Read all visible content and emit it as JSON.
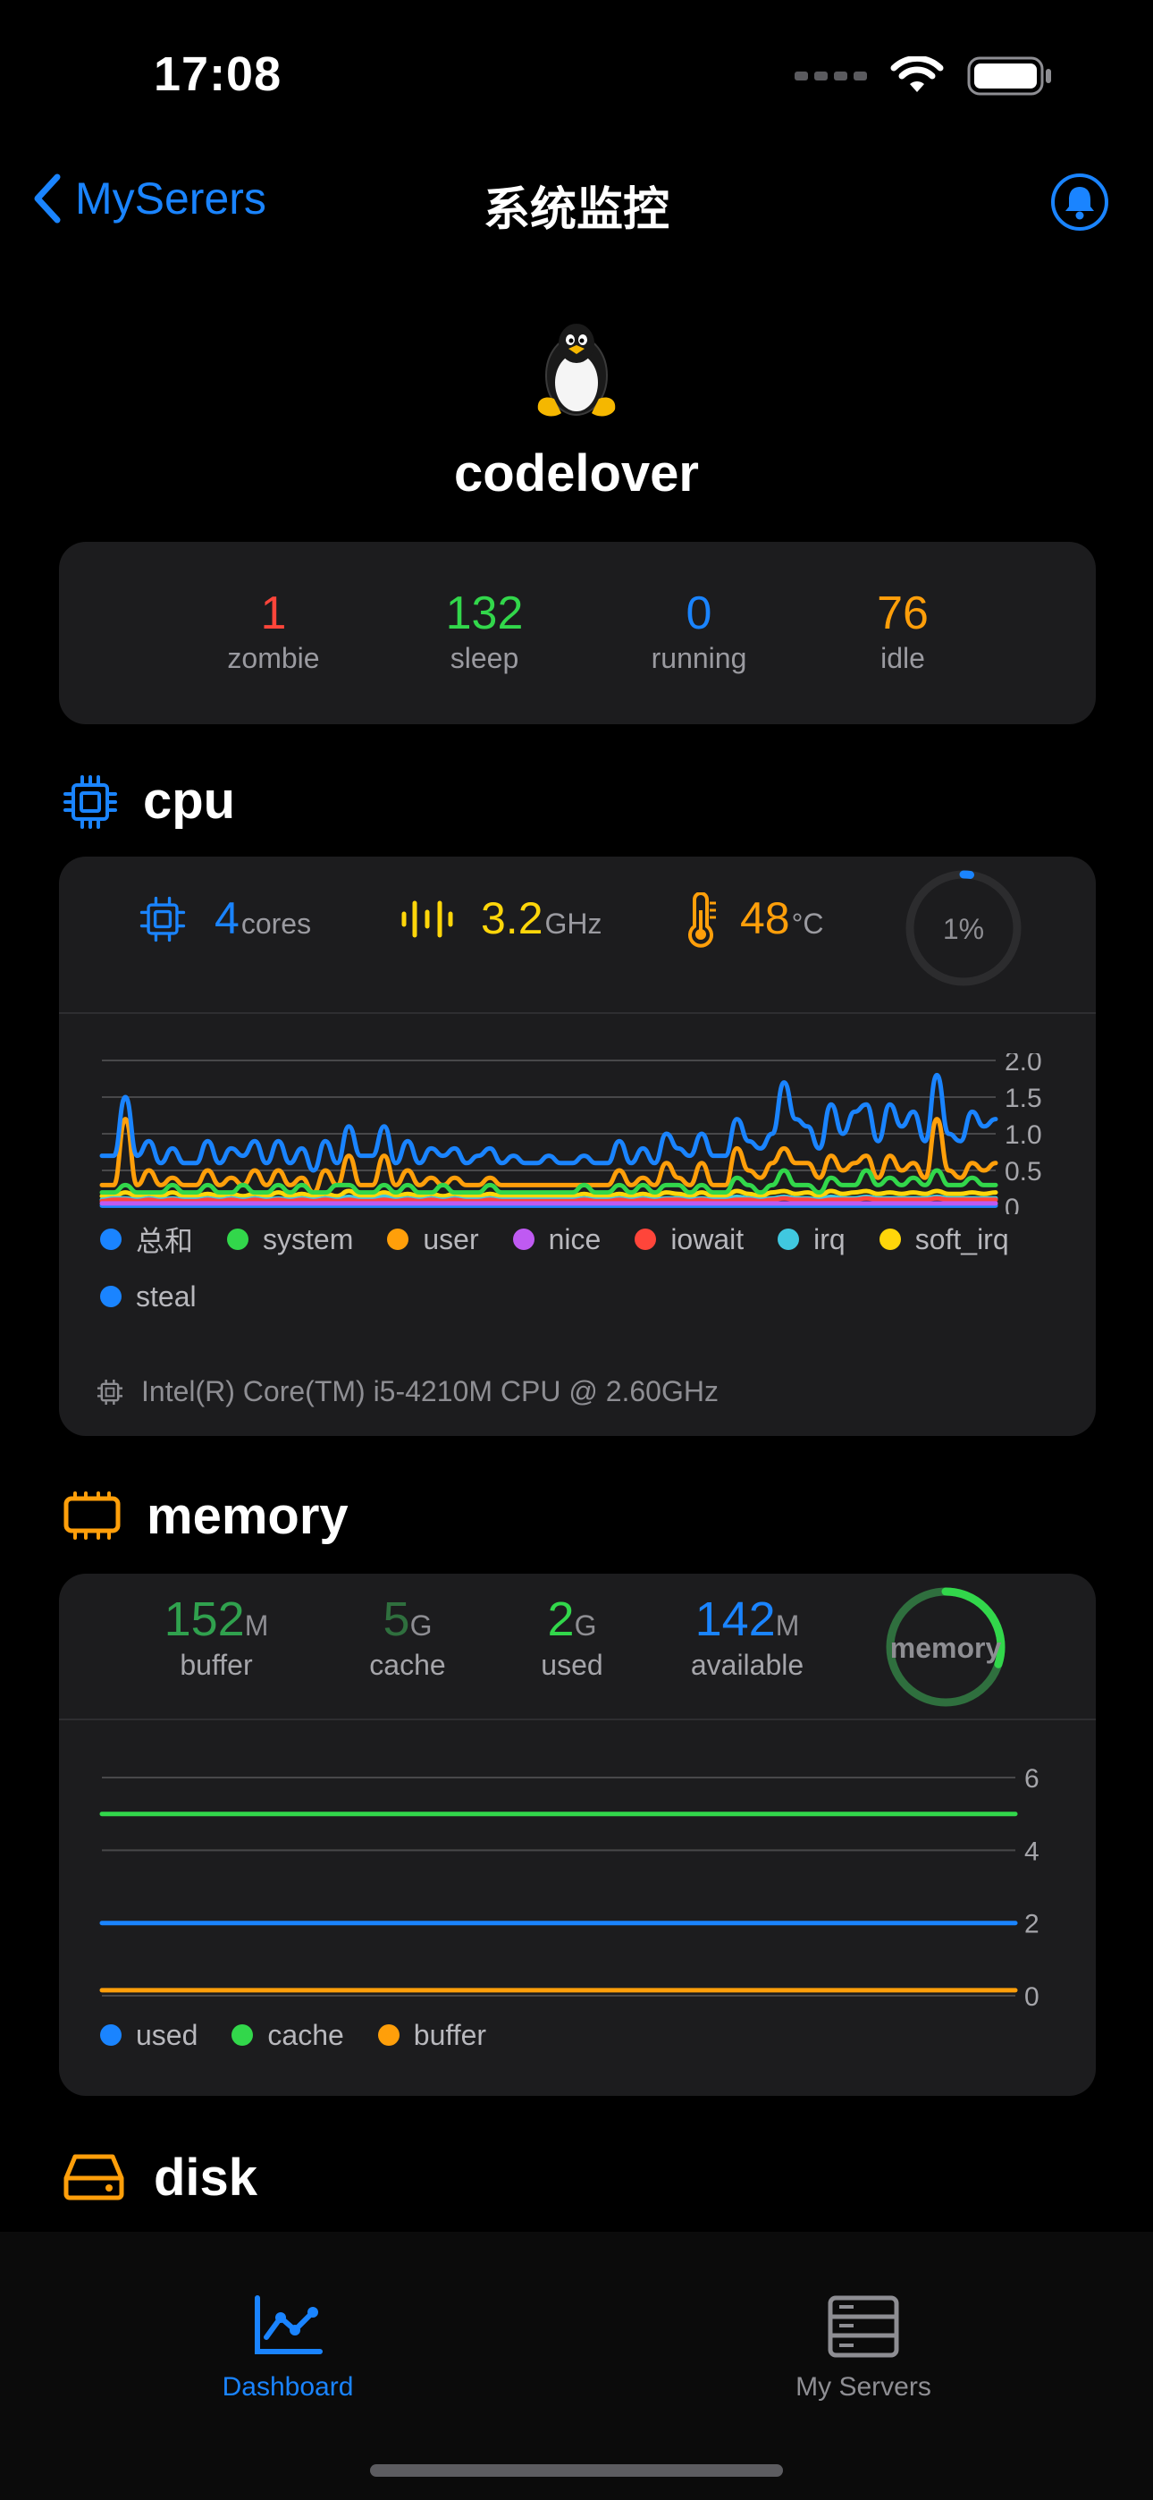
{
  "status_bar": {
    "time": "17:08"
  },
  "nav": {
    "back_label": "MySerers",
    "title": "系统监控"
  },
  "host": {
    "name": "codelover"
  },
  "processes": [
    {
      "value": "1",
      "label": "zombie",
      "color": "#ff453a"
    },
    {
      "value": "132",
      "label": "sleep",
      "color": "#32d74b"
    },
    {
      "value": "0",
      "label": "running",
      "color": "#1a84ff"
    },
    {
      "value": "76",
      "label": "idle",
      "color": "#ff9f0a"
    }
  ],
  "cpu": {
    "section_title": "cpu",
    "cores_value": "4",
    "cores_unit": "cores",
    "freq_value": "3.2",
    "freq_unit": "GHz",
    "temp_value": "48",
    "temp_unit": "°C",
    "usage_label": "1%",
    "usage_fraction": 0.01,
    "model": "Intel(R) Core(TM) i5-4210M CPU @ 2.60GHz",
    "legend": [
      {
        "name": "总和",
        "color": "#1a84ff"
      },
      {
        "name": "system",
        "color": "#32d74b"
      },
      {
        "name": "user",
        "color": "#ff9f0a"
      },
      {
        "name": "nice",
        "color": "#bf5af2"
      },
      {
        "name": "iowait",
        "color": "#ff453a"
      },
      {
        "name": "irq",
        "color": "#40c8e0"
      },
      {
        "name": "soft_irq",
        "color": "#ffd60a"
      },
      {
        "name": "steal",
        "color": "#1a84ff"
      }
    ]
  },
  "memory": {
    "section_title": "memory",
    "ring_label": "memory",
    "ring_fraction": 0.3,
    "stats": [
      {
        "value": "152",
        "unit": "M",
        "label": "buffer",
        "color": "#30a14e"
      },
      {
        "value": "5",
        "unit": "G",
        "label": "cache",
        "color": "#2f6f3e"
      },
      {
        "value": "2",
        "unit": "G",
        "label": "used",
        "color": "#32d74b"
      },
      {
        "value": "142",
        "unit": "M",
        "label": "available",
        "color": "#1a84ff"
      }
    ],
    "legend": [
      {
        "name": "used",
        "color": "#1a84ff"
      },
      {
        "name": "cache",
        "color": "#32d74b"
      },
      {
        "name": "buffer",
        "color": "#ff9f0a"
      }
    ]
  },
  "disk": {
    "section_title": "disk"
  },
  "tabs": [
    {
      "label": "Dashboard",
      "active": true
    },
    {
      "label": "My Servers",
      "active": false
    }
  ],
  "chart_data": [
    {
      "type": "line",
      "title": "",
      "xlabel": "",
      "ylabel": "",
      "y_ticks": [
        "2.0",
        "1.5",
        "1.0",
        "0.5",
        "0"
      ],
      "ylim": [
        0,
        2.0
      ],
      "grid": true,
      "legend_position": "bottom",
      "series": [
        {
          "name": "总和",
          "color": "#1a84ff",
          "values": [
            0.7,
            0.7,
            1.5,
            0.7,
            0.9,
            0.6,
            0.8,
            0.6,
            0.6,
            0.9,
            0.6,
            0.8,
            0.7,
            0.9,
            0.6,
            0.9,
            0.6,
            0.8,
            0.5,
            0.9,
            0.6,
            1.1,
            0.7,
            0.7,
            1.1,
            0.6,
            0.9,
            0.6,
            0.8,
            0.7,
            0.8,
            0.6,
            0.7,
            0.8,
            0.6,
            0.7,
            0.6,
            0.6,
            0.7,
            0.6,
            0.6,
            0.7,
            0.6,
            0.6,
            0.9,
            0.6,
            0.8,
            0.6,
            1.0,
            0.8,
            0.7,
            1.0,
            0.7,
            0.7,
            1.2,
            0.9,
            0.8,
            1.0,
            1.7,
            1.2,
            1.1,
            0.8,
            1.4,
            1.0,
            1.3,
            1.4,
            0.9,
            1.4,
            1.1,
            1.3,
            0.9,
            1.8,
            1.0,
            0.9,
            1.3,
            1.1,
            1.2
          ]
        },
        {
          "name": "system",
          "color": "#32d74b",
          "values": [
            0.2,
            0.2,
            0.3,
            0.2,
            0.2,
            0.2,
            0.3,
            0.2,
            0.2,
            0.3,
            0.2,
            0.2,
            0.3,
            0.2,
            0.2,
            0.3,
            0.2,
            0.3,
            0.2,
            0.2,
            0.3,
            0.3,
            0.2,
            0.2,
            0.3,
            0.2,
            0.3,
            0.2,
            0.2,
            0.3,
            0.2,
            0.2,
            0.2,
            0.3,
            0.2,
            0.2,
            0.2,
            0.2,
            0.2,
            0.2,
            0.2,
            0.3,
            0.2,
            0.2,
            0.3,
            0.2,
            0.3,
            0.2,
            0.3,
            0.3,
            0.2,
            0.3,
            0.2,
            0.2,
            0.4,
            0.3,
            0.2,
            0.3,
            0.5,
            0.3,
            0.3,
            0.2,
            0.4,
            0.3,
            0.3,
            0.5,
            0.3,
            0.4,
            0.3,
            0.4,
            0.3,
            0.5,
            0.3,
            0.3,
            0.4,
            0.3,
            0.3
          ]
        },
        {
          "name": "user",
          "color": "#ff9f0a",
          "values": [
            0.3,
            0.3,
            1.2,
            0.3,
            0.5,
            0.3,
            0.4,
            0.3,
            0.3,
            0.5,
            0.3,
            0.4,
            0.3,
            0.5,
            0.3,
            0.5,
            0.3,
            0.4,
            0.2,
            0.5,
            0.3,
            0.7,
            0.3,
            0.3,
            0.7,
            0.3,
            0.5,
            0.3,
            0.4,
            0.3,
            0.4,
            0.3,
            0.3,
            0.4,
            0.3,
            0.3,
            0.3,
            0.3,
            0.3,
            0.3,
            0.3,
            0.3,
            0.3,
            0.3,
            0.5,
            0.3,
            0.4,
            0.3,
            0.6,
            0.4,
            0.3,
            0.6,
            0.3,
            0.3,
            0.8,
            0.5,
            0.4,
            0.6,
            0.8,
            0.6,
            0.6,
            0.4,
            0.7,
            0.5,
            0.6,
            0.7,
            0.4,
            0.7,
            0.5,
            0.6,
            0.4,
            1.2,
            0.5,
            0.4,
            0.6,
            0.5,
            0.6
          ]
        },
        {
          "name": "nice",
          "color": "#bf5af2",
          "values": [
            0.05,
            0.05,
            0.05,
            0.05,
            0.05,
            0.05,
            0.05,
            0.05,
            0.05,
            0.05,
            0.05,
            0.05,
            0.05,
            0.05,
            0.05,
            0.05,
            0.05,
            0.05,
            0.05,
            0.05,
            0.05,
            0.05,
            0.05,
            0.05,
            0.05,
            0.05,
            0.05,
            0.05,
            0.05,
            0.05,
            0.05,
            0.05,
            0.05,
            0.05,
            0.05,
            0.05,
            0.05,
            0.05,
            0.05,
            0.05,
            0.05,
            0.05,
            0.05,
            0.05,
            0.05,
            0.05,
            0.05,
            0.05,
            0.05,
            0.05,
            0.05,
            0.05,
            0.05,
            0.05,
            0.05,
            0.05,
            0.05,
            0.05,
            0.05,
            0.05,
            0.05,
            0.05,
            0.05,
            0.05,
            0.05,
            0.05,
            0.05,
            0.05,
            0.05,
            0.05,
            0.05,
            0.05,
            0.05,
            0.05,
            0.05,
            0.05,
            0.05
          ]
        },
        {
          "name": "iowait",
          "color": "#ff453a",
          "values": [
            0.08,
            0.1,
            0.1,
            0.08,
            0.1,
            0.08,
            0.1,
            0.08,
            0.08,
            0.1,
            0.08,
            0.1,
            0.08,
            0.1,
            0.08,
            0.1,
            0.08,
            0.1,
            0.08,
            0.1,
            0.08,
            0.1,
            0.08,
            0.08,
            0.1,
            0.08,
            0.1,
            0.08,
            0.1,
            0.08,
            0.1,
            0.08,
            0.08,
            0.1,
            0.08,
            0.08,
            0.08,
            0.08,
            0.08,
            0.08,
            0.08,
            0.1,
            0.08,
            0.08,
            0.1,
            0.08,
            0.1,
            0.08,
            0.1,
            0.1,
            0.08,
            0.1,
            0.08,
            0.08,
            0.1,
            0.1,
            0.08,
            0.1,
            0.12,
            0.1,
            0.1,
            0.08,
            0.1,
            0.1,
            0.1,
            0.12,
            0.1,
            0.1,
            0.1,
            0.1,
            0.1,
            0.12,
            0.1,
            0.1,
            0.1,
            0.1,
            0.1
          ]
        },
        {
          "name": "irq",
          "color": "#40c8e0",
          "values": [
            0.1,
            0.12,
            0.12,
            0.1,
            0.12,
            0.1,
            0.12,
            0.1,
            0.1,
            0.12,
            0.1,
            0.12,
            0.1,
            0.12,
            0.1,
            0.12,
            0.1,
            0.12,
            0.1,
            0.12,
            0.1,
            0.14,
            0.1,
            0.1,
            0.14,
            0.1,
            0.12,
            0.1,
            0.12,
            0.1,
            0.12,
            0.1,
            0.1,
            0.12,
            0.1,
            0.1,
            0.1,
            0.1,
            0.1,
            0.1,
            0.1,
            0.12,
            0.1,
            0.1,
            0.12,
            0.1,
            0.12,
            0.1,
            0.12,
            0.12,
            0.1,
            0.12,
            0.1,
            0.1,
            0.14,
            0.12,
            0.1,
            0.12,
            0.14,
            0.12,
            0.12,
            0.1,
            0.14,
            0.12,
            0.12,
            0.14,
            0.12,
            0.12,
            0.12,
            0.12,
            0.12,
            0.14,
            0.12,
            0.12,
            0.12,
            0.12,
            0.12
          ]
        },
        {
          "name": "soft_irq",
          "color": "#ffd60a",
          "values": [
            0.15,
            0.15,
            0.2,
            0.15,
            0.18,
            0.15,
            0.2,
            0.15,
            0.15,
            0.18,
            0.15,
            0.18,
            0.15,
            0.18,
            0.15,
            0.2,
            0.15,
            0.18,
            0.15,
            0.18,
            0.15,
            0.22,
            0.15,
            0.15,
            0.2,
            0.15,
            0.18,
            0.15,
            0.18,
            0.15,
            0.18,
            0.15,
            0.15,
            0.18,
            0.15,
            0.15,
            0.15,
            0.15,
            0.15,
            0.15,
            0.15,
            0.18,
            0.15,
            0.15,
            0.18,
            0.15,
            0.18,
            0.15,
            0.2,
            0.18,
            0.15,
            0.2,
            0.15,
            0.15,
            0.22,
            0.18,
            0.15,
            0.2,
            0.22,
            0.18,
            0.2,
            0.15,
            0.22,
            0.18,
            0.2,
            0.22,
            0.18,
            0.2,
            0.18,
            0.2,
            0.18,
            0.22,
            0.18,
            0.18,
            0.2,
            0.18,
            0.2
          ]
        },
        {
          "name": "steal",
          "color": "#1a84ff",
          "values": [
            0.02,
            0.02,
            0.02,
            0.02,
            0.02,
            0.02,
            0.02,
            0.02,
            0.02,
            0.02,
            0.02,
            0.02,
            0.02,
            0.02,
            0.02,
            0.02,
            0.02,
            0.02,
            0.02,
            0.02,
            0.02,
            0.02,
            0.02,
            0.02,
            0.02,
            0.02,
            0.02,
            0.02,
            0.02,
            0.02,
            0.02,
            0.02,
            0.02,
            0.02,
            0.02,
            0.02,
            0.02,
            0.02,
            0.02,
            0.02,
            0.02,
            0.02,
            0.02,
            0.02,
            0.02,
            0.02,
            0.02,
            0.02,
            0.02,
            0.02,
            0.02,
            0.02,
            0.02,
            0.02,
            0.02,
            0.02,
            0.02,
            0.02,
            0.02,
            0.02,
            0.02,
            0.02,
            0.02,
            0.02,
            0.02,
            0.02,
            0.02,
            0.02,
            0.02,
            0.02,
            0.02,
            0.02,
            0.02,
            0.02,
            0.02,
            0.02,
            0.02
          ]
        }
      ]
    },
    {
      "type": "line",
      "title": "",
      "xlabel": "",
      "ylabel": "",
      "y_ticks": [
        "6",
        "4",
        "2",
        "0"
      ],
      "ylim": [
        0,
        6
      ],
      "grid": true,
      "legend_position": "bottom",
      "series": [
        {
          "name": "used",
          "color": "#1a84ff",
          "values": [
            2,
            2,
            2,
            2,
            2,
            2,
            2,
            2,
            2,
            2
          ]
        },
        {
          "name": "cache",
          "color": "#32d74b",
          "values": [
            5,
            5,
            5,
            5,
            5,
            5,
            5,
            5,
            5,
            5
          ]
        },
        {
          "name": "buffer",
          "color": "#ff9f0a",
          "values": [
            0.15,
            0.15,
            0.15,
            0.15,
            0.15,
            0.15,
            0.15,
            0.15,
            0.15,
            0.15
          ]
        }
      ]
    }
  ]
}
